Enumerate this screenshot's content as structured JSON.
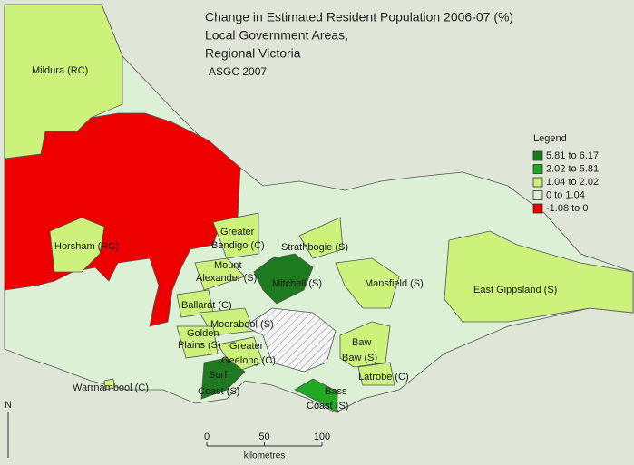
{
  "title_lines": [
    "Change in Estimated Resident Population 2006-07 (%)",
    "Local Government Areas,",
    "Regional Victoria"
  ],
  "source": "ASGC 2007",
  "legend": {
    "title": "Legend",
    "items": [
      {
        "label": "5.81 to 6.17",
        "color": "#1e7a1e"
      },
      {
        "label": "2.02 to 5.81",
        "color": "#22a822"
      },
      {
        "label": "1.04 to 2.02",
        "color": "#ccf27c"
      },
      {
        "label": "0 to 1.04",
        "color": "#dcf0d6"
      },
      {
        "label": "-1.08 to 0",
        "color": "#ee0000"
      }
    ]
  },
  "area_labels": [
    [
      "Mildura (RC)"
    ],
    [
      "Horsham (RC)"
    ],
    [
      "Greater",
      "Bendigo (C)"
    ],
    [
      "Strathbogie (S)"
    ],
    [
      "Mount",
      "Alexander (S)"
    ],
    [
      "Mitchell (S)"
    ],
    [
      "Mansfield (S)"
    ],
    [
      "East Gippsland (S)"
    ],
    [
      "Ballarat (C)"
    ],
    [
      "Moorabool (S)"
    ],
    [
      "Golden",
      "Plains (S)"
    ],
    [
      "Greater",
      "Geelong (C)"
    ],
    [
      "Baw",
      "Baw (S)"
    ],
    [
      "Latrobe (C)"
    ],
    [
      "Surf",
      "Coast (S)"
    ],
    [
      "Warrnambool (C)"
    ],
    [
      "Bass",
      "Coast (S)"
    ]
  ],
  "scale_bar": {
    "range": [
      0,
      100
    ],
    "ticks": [
      0,
      50,
      100
    ],
    "label": "kilometres"
  },
  "north": "N"
}
